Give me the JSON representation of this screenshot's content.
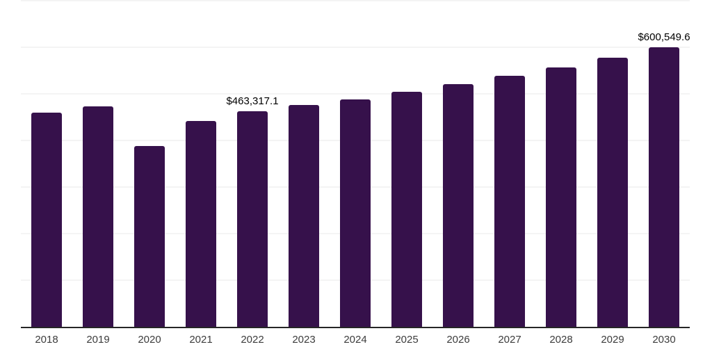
{
  "chart_data": {
    "type": "bar",
    "title": "",
    "xlabel": "",
    "ylabel": "",
    "categories": [
      "2018",
      "2019",
      "2020",
      "2021",
      "2022",
      "2023",
      "2024",
      "2025",
      "2026",
      "2027",
      "2028",
      "2029",
      "2030"
    ],
    "values": [
      459700,
      473100,
      388100,
      441800,
      463317.1,
      476800,
      488700,
      505100,
      521500,
      539400,
      557300,
      578100,
      600549.6
    ],
    "point_labels": [
      "",
      "",
      "",
      "",
      "$463,317.1",
      "",
      "",
      "",
      "",
      "",
      "",
      "",
      "$600,549.6"
    ],
    "ylim": [
      0,
      700000
    ],
    "ytick_step": 100000,
    "grid": "horizontal",
    "legend": "none"
  },
  "colors": {
    "bar": "#36114B",
    "gridline": "#F4F4F4",
    "axis_line": "#262626",
    "tick_label": "#3C3C3C",
    "value_label": "#000000",
    "background": "#FFFFFF"
  }
}
